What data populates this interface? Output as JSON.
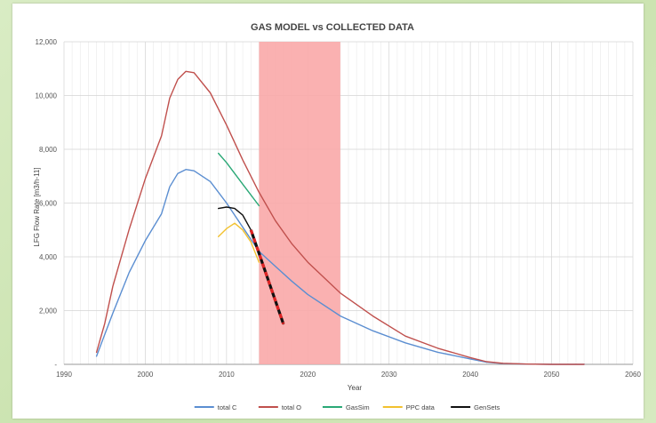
{
  "chart_data": {
    "type": "line",
    "title": "GAS MODEL vs COLLECTED DATA",
    "xlabel": "Year",
    "ylabel": "LFG Flow Rate [m3/h-11]",
    "xlim": [
      1990,
      2060
    ],
    "ylim": [
      0,
      12000
    ],
    "x_ticks": [
      "1990",
      "2000",
      "2010",
      "2020",
      "2030",
      "2040",
      "2050",
      "2060"
    ],
    "y_ticks": [
      "-",
      "2,000",
      "4,000",
      "6,000",
      "8,000",
      "10,000",
      "12,000"
    ],
    "grid": true,
    "legend_position": "bottom",
    "highlight_band": {
      "x_from": 2014,
      "x_to": 2024,
      "color": "#f9a8a8"
    },
    "series": [
      {
        "name": "total C",
        "color": "#5b8ed1",
        "x": [
          1994,
          1995,
          1996,
          1998,
          2000,
          2002,
          2003,
          2004,
          2005,
          2006,
          2008,
          2010,
          2012,
          2014,
          2016,
          2018,
          2020,
          2024,
          2028,
          2032,
          2036,
          2040,
          2042,
          2044,
          2047,
          2050,
          2054
        ],
        "y": [
          300,
          1100,
          1900,
          3400,
          4600,
          5600,
          6600,
          7100,
          7250,
          7200,
          6800,
          6000,
          5100,
          4200,
          3650,
          3100,
          2600,
          1800,
          1250,
          800,
          450,
          200,
          80,
          30,
          10,
          0,
          0
        ]
      },
      {
        "name": "total O",
        "color": "#c0504d",
        "x": [
          1994,
          1995,
          1996,
          1998,
          2000,
          2002,
          2003,
          2004,
          2005,
          2006,
          2008,
          2010,
          2012,
          2014,
          2016,
          2018,
          2020,
          2024,
          2028,
          2032,
          2036,
          2040,
          2042,
          2044,
          2047,
          2050,
          2054
        ],
        "y": [
          450,
          1500,
          2900,
          5000,
          6900,
          8500,
          9900,
          10600,
          10900,
          10850,
          10100,
          8900,
          7600,
          6400,
          5350,
          4500,
          3800,
          2650,
          1800,
          1050,
          600,
          250,
          100,
          40,
          10,
          0,
          0
        ]
      },
      {
        "name": "GasSim",
        "color": "#2aa876",
        "x": [
          2009,
          2010,
          2011,
          2012,
          2013,
          2014
        ],
        "y": [
          7850,
          7500,
          7100,
          6700,
          6300,
          5900
        ]
      },
      {
        "name": "PPC data",
        "color": "#f2c12e",
        "x": [
          2009,
          2010,
          2011,
          2012,
          2013,
          2014
        ],
        "y": [
          4750,
          5050,
          5250,
          5000,
          4550,
          3800
        ]
      },
      {
        "name": "GenSets",
        "color": "#111111",
        "x": [
          2009,
          2010,
          2011,
          2012,
          2013,
          2014,
          2015,
          2016,
          2017
        ],
        "y": [
          5800,
          5850,
          5800,
          5550,
          5000,
          4200,
          3300,
          2400,
          1500
        ]
      }
    ],
    "trend_line": {
      "color": "#e02424",
      "style": "dashed",
      "x": [
        2013,
        2017
      ],
      "y": [
        5000,
        1500
      ]
    }
  }
}
